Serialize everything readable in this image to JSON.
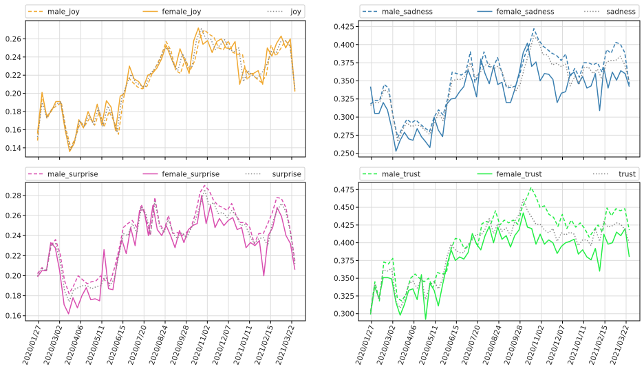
{
  "chart_data": [
    {
      "type": "line",
      "ylim": [
        0.13,
        0.28
      ],
      "yticks": [
        0.14,
        0.16,
        0.18,
        0.2,
        0.22,
        0.24,
        0.26
      ],
      "ytick_labels": [
        "0.14",
        "0.16",
        "0.18",
        "0.20",
        "0.22",
        "0.24",
        "0.26"
      ],
      "legend": "top",
      "grid": true,
      "series": [
        {
          "name": "male_joy",
          "color": "#f0a830",
          "style": "dashed",
          "values": [
            0.148,
            0.198,
            0.172,
            0.183,
            0.186,
            0.19,
            0.16,
            0.14,
            0.152,
            0.168,
            0.165,
            0.173,
            0.165,
            0.18,
            0.163,
            0.18,
            0.17,
            0.155,
            0.193,
            0.218,
            0.212,
            0.207,
            0.205,
            0.208,
            0.221,
            0.231,
            0.242,
            0.257,
            0.247,
            0.225,
            0.222,
            0.238,
            0.225,
            0.236,
            0.26,
            0.27,
            0.265,
            0.262,
            0.25,
            0.248,
            0.258,
            0.245,
            0.243,
            0.243,
            0.215,
            0.222,
            0.216,
            0.212,
            0.22,
            0.253,
            0.241,
            0.249,
            0.258,
            0.252,
            0.203
          ]
        },
        {
          "name": "female_joy",
          "color": "#f0a830",
          "style": "solid",
          "values": [
            0.156,
            0.201,
            0.175,
            0.18,
            0.191,
            0.191,
            0.16,
            0.136,
            0.145,
            0.171,
            0.162,
            0.18,
            0.168,
            0.188,
            0.165,
            0.192,
            0.185,
            0.159,
            0.197,
            0.2,
            0.23,
            0.216,
            0.213,
            0.206,
            0.22,
            0.222,
            0.228,
            0.238,
            0.253,
            0.24,
            0.228,
            0.249,
            0.236,
            0.222,
            0.258,
            0.272,
            0.254,
            0.258,
            0.245,
            0.257,
            0.26,
            0.25,
            0.249,
            0.257,
            0.21,
            0.228,
            0.221,
            0.222,
            0.225,
            0.21,
            0.25,
            0.241,
            0.255,
            0.263,
            0.25,
            0.26,
            0.202
          ]
        },
        {
          "name": "joy",
          "color": "#888888",
          "style": "dotted",
          "values": [
            0.152,
            0.19,
            0.173,
            0.182,
            0.188,
            0.191,
            0.16,
            0.138,
            0.148,
            0.17,
            0.164,
            0.176,
            0.166,
            0.184,
            0.164,
            0.186,
            0.176,
            0.157,
            0.195,
            0.209,
            0.221,
            0.212,
            0.209,
            0.207,
            0.221,
            0.227,
            0.235,
            0.248,
            0.25,
            0.233,
            0.225,
            0.244,
            0.231,
            0.229,
            0.259,
            0.271,
            0.26,
            0.26,
            0.248,
            0.253,
            0.259,
            0.248,
            0.246,
            0.25,
            0.213,
            0.225,
            0.219,
            0.217,
            0.223,
            0.232,
            0.246,
            0.245,
            0.257,
            0.258,
            0.252,
            0.205
          ]
        }
      ]
    },
    {
      "type": "line",
      "ylim": [
        0.245,
        0.433
      ],
      "yticks": [
        0.25,
        0.275,
        0.3,
        0.325,
        0.35,
        0.375,
        0.4,
        0.425
      ],
      "ytick_labels": [
        "0.250",
        "0.275",
        "0.300",
        "0.325",
        "0.350",
        "0.375",
        "0.400",
        "0.425"
      ],
      "legend": "top",
      "grid": true,
      "series": [
        {
          "name": "male_sadness",
          "color": "#3a7fb0",
          "style": "dashed",
          "values": [
            0.318,
            0.323,
            0.323,
            0.345,
            0.34,
            0.3,
            0.272,
            0.285,
            0.297,
            0.292,
            0.296,
            0.29,
            0.285,
            0.28,
            0.3,
            0.31,
            0.303,
            0.325,
            0.362,
            0.36,
            0.358,
            0.362,
            0.39,
            0.348,
            0.362,
            0.39,
            0.37,
            0.368,
            0.382,
            0.36,
            0.34,
            0.341,
            0.343,
            0.362,
            0.385,
            0.4,
            0.422,
            0.407,
            0.398,
            0.393,
            0.388,
            0.385,
            0.378,
            0.387,
            0.356,
            0.367,
            0.355,
            0.375,
            0.375,
            0.372,
            0.375,
            0.362,
            0.393,
            0.388,
            0.403,
            0.401,
            0.389,
            0.345
          ]
        },
        {
          "name": "female_sadness",
          "color": "#3a7fb0",
          "style": "solid",
          "values": [
            0.342,
            0.305,
            0.305,
            0.32,
            0.31,
            0.285,
            0.253,
            0.268,
            0.279,
            0.27,
            0.268,
            0.284,
            0.273,
            0.266,
            0.258,
            0.3,
            0.282,
            0.273,
            0.318,
            0.325,
            0.326,
            0.335,
            0.342,
            0.365,
            0.35,
            0.328,
            0.38,
            0.36,
            0.346,
            0.37,
            0.345,
            0.348,
            0.32,
            0.32,
            0.338,
            0.36,
            0.389,
            0.402,
            0.37,
            0.376,
            0.35,
            0.36,
            0.359,
            0.352,
            0.32,
            0.333,
            0.335,
            0.358,
            0.362,
            0.346,
            0.356,
            0.34,
            0.343,
            0.36,
            0.309,
            0.368,
            0.34,
            0.362,
            0.351,
            0.364,
            0.36,
            0.342
          ]
        },
        {
          "name": "sadness",
          "color": "#888888",
          "style": "dotted",
          "values": [
            0.316,
            0.32,
            0.32,
            0.338,
            0.334,
            0.3,
            0.266,
            0.282,
            0.292,
            0.287,
            0.289,
            0.288,
            0.282,
            0.276,
            0.29,
            0.306,
            0.295,
            0.32,
            0.35,
            0.352,
            0.352,
            0.358,
            0.375,
            0.355,
            0.36,
            0.37,
            0.375,
            0.366,
            0.37,
            0.363,
            0.342,
            0.344,
            0.336,
            0.346,
            0.37,
            0.39,
            0.412,
            0.405,
            0.386,
            0.386,
            0.372,
            0.374,
            0.37,
            0.373,
            0.343,
            0.356,
            0.346,
            0.368,
            0.369,
            0.36,
            0.366,
            0.352,
            0.376,
            0.378,
            0.378,
            0.384,
            0.372,
            0.349
          ]
        }
      ]
    },
    {
      "type": "line",
      "ylim": [
        0.155,
        0.293
      ],
      "yticks": [
        0.16,
        0.18,
        0.2,
        0.22,
        0.24,
        0.26,
        0.28
      ],
      "ytick_labels": [
        "0.16",
        "0.18",
        "0.20",
        "0.22",
        "0.24",
        "0.26",
        "0.28"
      ],
      "legend": "top",
      "grid": true,
      "series": [
        {
          "name": "male_surprise",
          "color": "#d94fb0",
          "style": "dashed",
          "values": [
            0.202,
            0.208,
            0.205,
            0.23,
            0.236,
            0.222,
            0.195,
            0.182,
            0.19,
            0.2,
            0.196,
            0.192,
            0.194,
            0.195,
            0.2,
            0.195,
            0.192,
            0.207,
            0.225,
            0.248,
            0.252,
            0.255,
            0.248,
            0.271,
            0.258,
            0.24,
            0.278,
            0.252,
            0.245,
            0.26,
            0.242,
            0.243,
            0.24,
            0.243,
            0.248,
            0.262,
            0.283,
            0.29,
            0.285,
            0.275,
            0.27,
            0.268,
            0.265,
            0.272,
            0.26,
            0.253,
            0.253,
            0.248,
            0.232,
            0.242,
            0.242,
            0.252,
            0.263,
            0.278,
            0.277,
            0.268,
            0.245,
            0.215
          ]
        },
        {
          "name": "female_surprise",
          "color": "#d94fb0",
          "style": "solid",
          "values": [
            0.199,
            0.205,
            0.205,
            0.233,
            0.228,
            0.205,
            0.171,
            0.162,
            0.178,
            0.168,
            0.18,
            0.188,
            0.176,
            0.177,
            0.175,
            0.226,
            0.187,
            0.186,
            0.215,
            0.236,
            0.222,
            0.248,
            0.23,
            0.265,
            0.266,
            0.24,
            0.27,
            0.246,
            0.24,
            0.25,
            0.24,
            0.228,
            0.245,
            0.233,
            0.246,
            0.25,
            0.252,
            0.28,
            0.252,
            0.27,
            0.248,
            0.257,
            0.25,
            0.255,
            0.258,
            0.246,
            0.248,
            0.228,
            0.233,
            0.23,
            0.235,
            0.2,
            0.24,
            0.248,
            0.268,
            0.259,
            0.24,
            0.232,
            0.206
          ]
        },
        {
          "name": "surprise",
          "color": "#888888",
          "style": "dotted",
          "values": [
            0.2,
            0.207,
            0.205,
            0.231,
            0.232,
            0.215,
            0.185,
            0.174,
            0.186,
            0.188,
            0.19,
            0.19,
            0.187,
            0.189,
            0.19,
            0.2,
            0.19,
            0.197,
            0.22,
            0.242,
            0.24,
            0.252,
            0.242,
            0.268,
            0.262,
            0.242,
            0.274,
            0.25,
            0.243,
            0.256,
            0.242,
            0.237,
            0.243,
            0.238,
            0.247,
            0.256,
            0.27,
            0.286,
            0.27,
            0.273,
            0.262,
            0.263,
            0.258,
            0.265,
            0.26,
            0.25,
            0.251,
            0.24,
            0.232,
            0.237,
            0.238,
            0.23,
            0.253,
            0.264,
            0.272,
            0.264,
            0.243,
            0.212
          ]
        }
      ]
    },
    {
      "type": "line",
      "ylim": [
        0.29,
        0.485
      ],
      "yticks": [
        0.3,
        0.325,
        0.35,
        0.375,
        0.4,
        0.425,
        0.45,
        0.475
      ],
      "ytick_labels": [
        "0.300",
        "0.325",
        "0.350",
        "0.375",
        "0.400",
        "0.425",
        "0.450",
        "0.475"
      ],
      "legend": "top",
      "grid": true,
      "series": [
        {
          "name": "male_trust",
          "color": "#22ee44",
          "style": "dashed",
          "values": [
            0.303,
            0.345,
            0.318,
            0.373,
            0.37,
            0.378,
            0.322,
            0.318,
            0.328,
            0.35,
            0.356,
            0.35,
            0.345,
            0.35,
            0.337,
            0.358,
            0.356,
            0.357,
            0.39,
            0.406,
            0.405,
            0.392,
            0.395,
            0.41,
            0.395,
            0.427,
            0.43,
            0.427,
            0.445,
            0.425,
            0.432,
            0.428,
            0.432,
            0.426,
            0.45,
            0.463,
            0.478,
            0.466,
            0.45,
            0.452,
            0.44,
            0.436,
            0.423,
            0.44,
            0.42,
            0.432,
            0.422,
            0.428,
            0.42,
            0.408,
            0.417,
            0.425,
            0.415,
            0.449,
            0.438,
            0.448,
            0.445,
            0.448,
            0.418
          ]
        },
        {
          "name": "female_trust",
          "color": "#22ee44",
          "style": "solid",
          "values": [
            0.299,
            0.338,
            0.322,
            0.351,
            0.351,
            0.349,
            0.316,
            0.298,
            0.313,
            0.333,
            0.335,
            0.32,
            0.355,
            0.292,
            0.343,
            0.333,
            0.311,
            0.341,
            0.368,
            0.39,
            0.375,
            0.38,
            0.377,
            0.386,
            0.413,
            0.398,
            0.39,
            0.41,
            0.423,
            0.4,
            0.422,
            0.405,
            0.41,
            0.394,
            0.41,
            0.418,
            0.442,
            0.422,
            0.42,
            0.398,
            0.412,
            0.398,
            0.404,
            0.4,
            0.385,
            0.395,
            0.4,
            0.402,
            0.405,
            0.384,
            0.39,
            0.38,
            0.376,
            0.392,
            0.36,
            0.412,
            0.398,
            0.4,
            0.415,
            0.41,
            0.42,
            0.38
          ]
        },
        {
          "name": "trust",
          "color": "#888888",
          "style": "dotted",
          "values": [
            0.301,
            0.342,
            0.32,
            0.362,
            0.36,
            0.364,
            0.318,
            0.308,
            0.32,
            0.342,
            0.346,
            0.336,
            0.35,
            0.32,
            0.34,
            0.346,
            0.335,
            0.349,
            0.38,
            0.398,
            0.39,
            0.386,
            0.386,
            0.398,
            0.404,
            0.412,
            0.41,
            0.419,
            0.434,
            0.413,
            0.427,
            0.416,
            0.421,
            0.41,
            0.43,
            0.44,
            0.461,
            0.445,
            0.436,
            0.426,
            0.426,
            0.418,
            0.414,
            0.42,
            0.402,
            0.414,
            0.411,
            0.415,
            0.412,
            0.396,
            0.404,
            0.404,
            0.396,
            0.42,
            0.402,
            0.43,
            0.422,
            0.424,
            0.428,
            0.426,
            0.418,
            0.4
          ]
        }
      ]
    }
  ],
  "x_tick_labels": [
    "2020/01/27",
    "2020/03/02",
    "2020/04/06",
    "2020/05/11",
    "2020/06/15",
    "2020/07/20",
    "2020/08/24",
    "2020/09/28",
    "2020/11/02",
    "2020/12/07",
    "2021/01/11",
    "2021/02/15",
    "2021/03/22"
  ]
}
